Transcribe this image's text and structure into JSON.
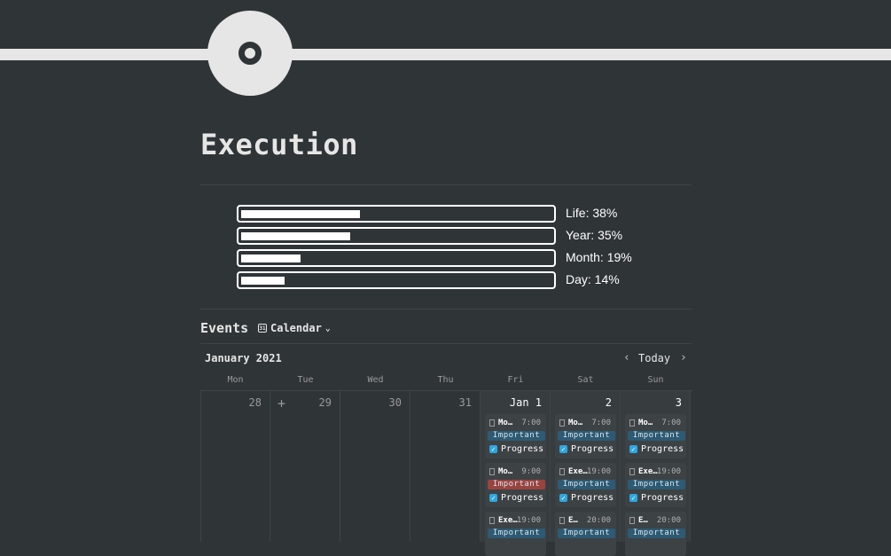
{
  "page": {
    "title": "Execution",
    "icon": "circle-ring-icon"
  },
  "progress": [
    {
      "label": "Life: 38%",
      "value": 0.38
    },
    {
      "label": "Year: 35%",
      "value": 0.35
    },
    {
      "label": "Month: 19%",
      "value": 0.19
    },
    {
      "label": "Day: 14%",
      "value": 0.14
    }
  ],
  "events": {
    "title": "Events",
    "view": "Calendar",
    "view_icon_text": "31",
    "view_chevron": "⌄",
    "month": "January 2021",
    "today": "Today",
    "prev": "‹",
    "next": "›",
    "add": "+",
    "weekdays": [
      "Mon",
      "Tue",
      "Wed",
      "Thu",
      "Fri",
      "Sat",
      "Sun"
    ],
    "days": [
      "28",
      "29",
      "30",
      "31",
      "Jan 1",
      "2",
      "3"
    ],
    "colors": {
      "tag_blue": "#2e5a73",
      "tag_red": "#9a4440",
      "check": "#2ea7e0"
    },
    "cards": {
      "fri": [
        {
          "title": "Mo…",
          "time": "7:00",
          "tag": "Important",
          "tag_color": "blue",
          "check": "Progress"
        },
        {
          "title": "Mo…",
          "time": "9:00",
          "tag": "Important",
          "tag_color": "red",
          "check": "Progress"
        },
        {
          "title": "Exe…",
          "time": "19:00",
          "tag": "Important",
          "tag_color": "blue",
          "check": ""
        }
      ],
      "sat": [
        {
          "title": "Mo…",
          "time": "7:00",
          "tag": "Important",
          "tag_color": "blue",
          "check": "Progress"
        },
        {
          "title": "Exe…",
          "time": "19:00",
          "tag": "Important",
          "tag_color": "blue",
          "check": "Progress"
        },
        {
          "title": "E…",
          "time": "20:00",
          "tag": "Important",
          "tag_color": "blue",
          "check": ""
        }
      ],
      "sun": [
        {
          "title": "Mo…",
          "time": "7:00",
          "tag": "Important",
          "tag_color": "blue",
          "check": "Progress"
        },
        {
          "title": "Exe…",
          "time": "19:00",
          "tag": "Important",
          "tag_color": "blue",
          "check": "Progress"
        },
        {
          "title": "E…",
          "time": "20:00",
          "tag": "Important",
          "tag_color": "blue",
          "check": ""
        }
      ]
    }
  }
}
